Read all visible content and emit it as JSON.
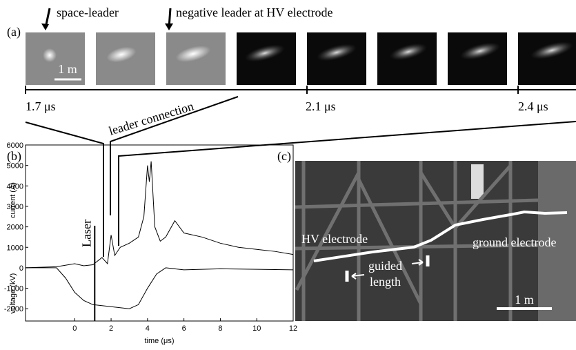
{
  "panel_a": {
    "label": "(a)",
    "annotations": [
      "space-leader",
      "negative leader at HV electrode"
    ],
    "scale_bar": "1 m",
    "times": [
      "1.7 μs",
      "2.1 μs",
      "2.4 μs"
    ]
  },
  "connection_label": "leader connection",
  "chart_data": {
    "type": "line",
    "label": "(b)",
    "xlabel": "time (μs)",
    "ylabels": [
      "current (A)",
      "voltage (kV)"
    ],
    "annotation": "Laser",
    "laser_time": 1.1,
    "xlim": [
      -2.7,
      12
    ],
    "xticks": [
      0,
      2,
      4,
      6,
      8,
      10,
      12
    ],
    "ylim": [
      -2600,
      6000
    ],
    "yticks": [
      -2000,
      -1000,
      0,
      1000,
      2000,
      3000,
      4000,
      5000,
      6000
    ],
    "series": [
      {
        "color": "#000000",
        "x": [
          -2.7,
          -1,
          0,
          0.5,
          1,
          1.5,
          1.8,
          2,
          2.2,
          2.5,
          3,
          3.5,
          3.8,
          4,
          4.1,
          4.2,
          4.4,
          4.7,
          5,
          5.5,
          6,
          7,
          8,
          9,
          10,
          11,
          12
        ],
        "values": [
          0,
          50,
          200,
          100,
          150,
          500,
          200,
          1600,
          600,
          1000,
          1200,
          1500,
          2500,
          5000,
          4200,
          5200,
          2000,
          1300,
          1500,
          2300,
          1700,
          1500,
          1200,
          1000,
          900,
          800,
          650
        ]
      },
      {
        "color": "#000000",
        "x": [
          -2.7,
          -1,
          -0.5,
          0,
          0.5,
          1,
          2,
          3,
          3.5,
          4,
          4.5,
          5,
          6,
          8,
          12
        ],
        "values": [
          0,
          0,
          -500,
          -1200,
          -1600,
          -1800,
          -1900,
          -2000,
          -1800,
          -1000,
          -300,
          0,
          -100,
          -50,
          -100
        ]
      }
    ]
  },
  "panel_c": {
    "label": "(c)",
    "annotations": [
      "HV electrode",
      "ground electrode",
      "guided",
      "length"
    ],
    "scale_bar": "1 m"
  }
}
